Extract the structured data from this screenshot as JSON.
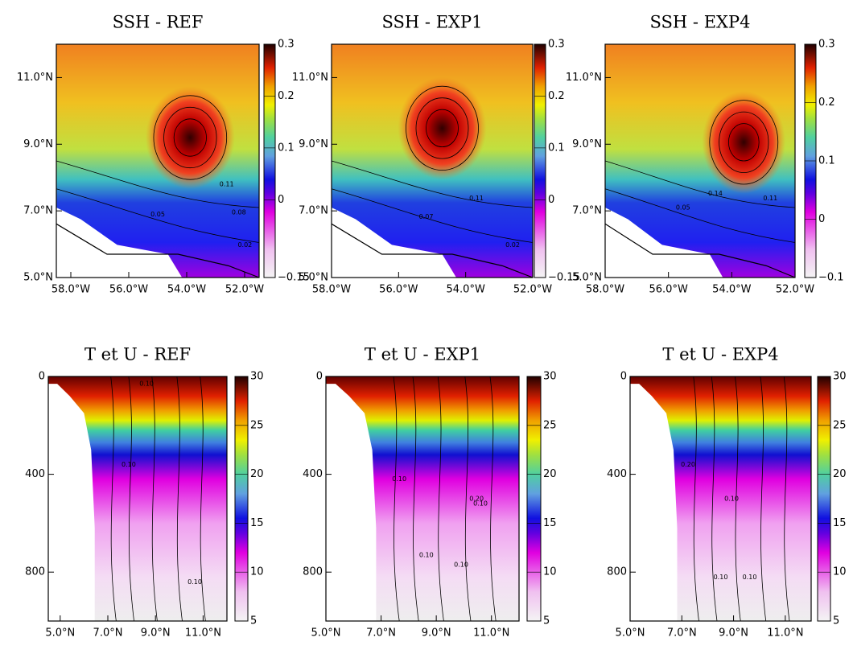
{
  "chart_data": [
    {
      "type": "contour",
      "title": "SSH - REF",
      "xlim": [
        -58.5,
        -51.5
      ],
      "ylim": [
        5,
        12
      ],
      "xticks": [
        {
          "value": -58,
          "label": "58.0°W"
        },
        {
          "value": -56,
          "label": "56.0°W"
        },
        {
          "value": -54,
          "label": "54.0°W"
        },
        {
          "value": -52,
          "label": "52.0°W"
        }
      ],
      "yticks": [
        {
          "value": 5,
          "label": "5.0°N"
        },
        {
          "value": 7,
          "label": "7.0°N"
        },
        {
          "value": 9,
          "label": "9.0°N"
        },
        {
          "value": 11,
          "label": "11.0°N"
        }
      ],
      "clim": [
        -0.15,
        0.3
      ],
      "cticks": [
        {
          "value": -0.15,
          "label": "−0.15"
        },
        0,
        0.1,
        0.2,
        0.3
      ],
      "contour_labels": [
        "0.11",
        "0.08",
        "0.05",
        "0.02"
      ]
    },
    {
      "type": "contour",
      "title": "SSH - EXP1",
      "xlim": [
        -58,
        -52
      ],
      "ylim": [
        5,
        12
      ],
      "xticks": [
        {
          "value": -58,
          "label": "58.0°W"
        },
        {
          "value": -56,
          "label": "56.0°W"
        },
        {
          "value": -54,
          "label": "54.0°W"
        },
        {
          "value": -52,
          "label": "52.0°W"
        }
      ],
      "yticks": [
        {
          "value": 5,
          "label": "5.0°N"
        },
        {
          "value": 7,
          "label": "7.0°N"
        },
        {
          "value": 9,
          "label": "9.0°N"
        },
        {
          "value": 11,
          "label": "11.0°N"
        }
      ],
      "clim": [
        -0.15,
        0.3
      ],
      "cticks": [
        {
          "value": -0.15,
          "label": "−0.15"
        },
        0,
        0.1,
        0.2,
        0.3
      ],
      "contour_labels": [
        "0.11",
        "0.07",
        "0.02"
      ]
    },
    {
      "type": "contour",
      "title": "SSH - EXP4",
      "xlim": [
        -58,
        -52
      ],
      "ylim": [
        5,
        12
      ],
      "xticks": [
        {
          "value": -58,
          "label": "58.0°W"
        },
        {
          "value": -56,
          "label": "56.0°W"
        },
        {
          "value": -54,
          "label": "54.0°W"
        },
        {
          "value": -52,
          "label": "52.0°W"
        }
      ],
      "yticks": [
        {
          "value": 5,
          "label": "5.0°N"
        },
        {
          "value": 7,
          "label": "7.0°N"
        },
        {
          "value": 9,
          "label": "9.0°N"
        },
        {
          "value": 11,
          "label": "11.0°N"
        }
      ],
      "clim": [
        -0.1,
        0.3
      ],
      "cticks": [
        {
          "value": -0.1,
          "label": "−0.1"
        },
        0,
        0.1,
        0.2,
        0.3
      ],
      "contour_labels": [
        "0.14",
        "0.11",
        "0.05"
      ]
    },
    {
      "type": "section",
      "title": "T et U - REF",
      "xlim": [
        4.5,
        12
      ],
      "ylim": [
        1000,
        0
      ],
      "xticks": [
        {
          "value": 5,
          "label": "5.0°N"
        },
        {
          "value": 7,
          "label": "7.0°N"
        },
        {
          "value": 9,
          "label": "9.0°N"
        },
        {
          "value": 11,
          "label": "11.0°N"
        }
      ],
      "yticks": [
        0,
        400,
        800
      ],
      "clim": [
        5,
        30
      ],
      "cticks": [
        5,
        10,
        15,
        20,
        25,
        30
      ],
      "contour_labels": [
        "0.10",
        "0.10",
        "0.10"
      ]
    },
    {
      "type": "section",
      "title": "T et U - EXP1",
      "xlim": [
        5,
        12
      ],
      "ylim": [
        1000,
        0
      ],
      "xticks": [
        {
          "value": 5,
          "label": "5.0°N"
        },
        {
          "value": 7,
          "label": "7.0°N"
        },
        {
          "value": 9,
          "label": "9.0°N"
        },
        {
          "value": 11,
          "label": "11.0°N"
        }
      ],
      "yticks": [
        0,
        400,
        800
      ],
      "clim": [
        5,
        30
      ],
      "cticks": [
        5,
        10,
        15,
        20,
        25,
        30
      ],
      "contour_labels": [
        "0.10",
        "0.20",
        "0.10",
        "0.10",
        "0.10"
      ]
    },
    {
      "type": "section",
      "title": "T et U - EXP4",
      "xlim": [
        5,
        12
      ],
      "ylim": [
        1000,
        0
      ],
      "xticks": [
        {
          "value": 5,
          "label": "5.0°N"
        },
        {
          "value": 7,
          "label": "7.0°N"
        },
        {
          "value": 9,
          "label": "9.0°N"
        },
        {
          "value": 11,
          "label": "11.0°N"
        }
      ],
      "yticks": [
        0,
        400,
        800
      ],
      "clim": [
        5,
        30
      ],
      "cticks": [
        5,
        10,
        15,
        20,
        25,
        30
      ],
      "contour_labels": [
        "0.10",
        "0.20",
        "0.10",
        "0.10"
      ]
    }
  ]
}
